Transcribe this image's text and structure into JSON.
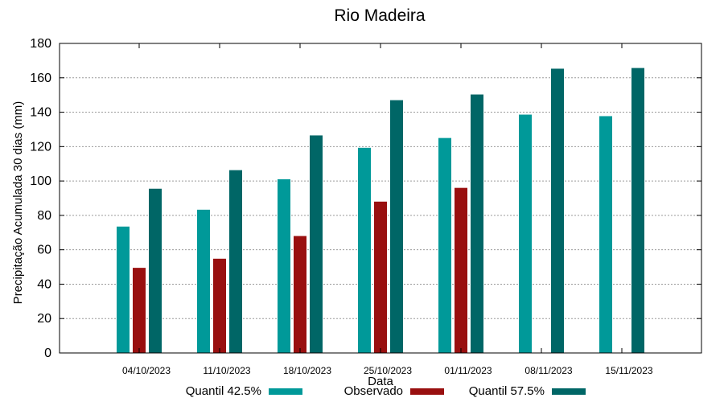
{
  "chart_data": {
    "type": "bar",
    "title": "Rio Madeira",
    "xlabel": "Data",
    "ylabel": "Precipitação Acumulada 30 dias (mm)",
    "ylim": [
      0,
      180
    ],
    "yticks": [
      0,
      20,
      40,
      60,
      80,
      100,
      120,
      140,
      160,
      180
    ],
    "grid": true,
    "legend_position": "bottom",
    "categories": [
      "04/10/2023",
      "11/10/2023",
      "18/10/2023",
      "25/10/2023",
      "01/11/2023",
      "08/11/2023",
      "15/11/2023"
    ],
    "series": [
      {
        "name": "Quantil 42.5%",
        "color": "#009999",
        "values": [
          73.5,
          83.3,
          101.0,
          119.3,
          125.0,
          138.6,
          137.7
        ]
      },
      {
        "name": "Observado",
        "color": "#990f0f",
        "values": [
          49.5,
          54.8,
          68.0,
          88.0,
          96.0,
          null,
          null
        ]
      },
      {
        "name": "Quantil 57.5%",
        "color": "#006666",
        "values": [
          95.5,
          106.3,
          126.5,
          147.0,
          150.3,
          165.3,
          165.7
        ]
      }
    ]
  }
}
